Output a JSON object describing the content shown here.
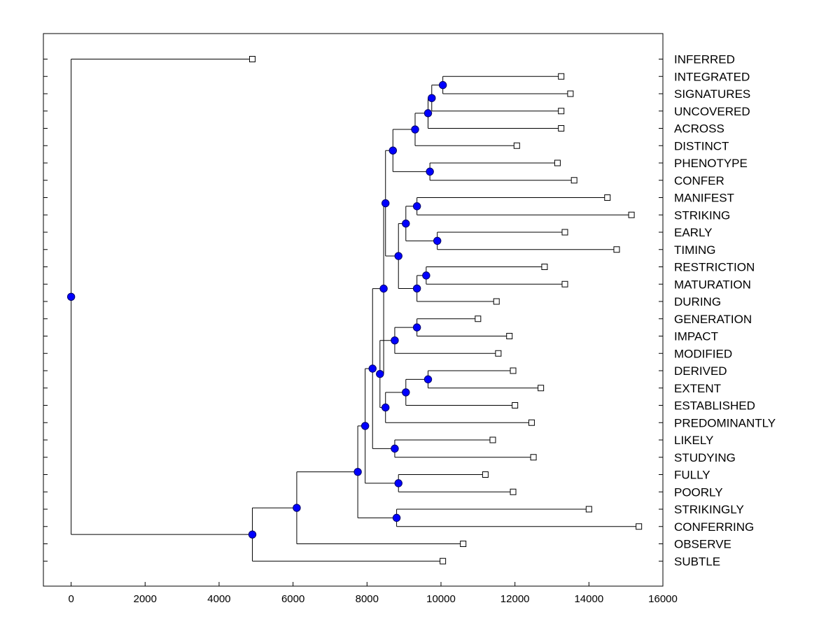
{
  "chart_data": {
    "type": "dendrogram",
    "title": "",
    "xlabel": "",
    "ylabel": "",
    "xlim": [
      -750,
      16000
    ],
    "x_ticks": [
      0,
      2000,
      4000,
      6000,
      8000,
      10000,
      12000,
      14000,
      16000
    ],
    "grid": false,
    "leaf_labels": [
      "INFERRED",
      "INTEGRATED",
      "SIGNATURES",
      "UNCOVERED",
      "ACROSS",
      "DISTINCT",
      "PHENOTYPE",
      "CONFER",
      "MANIFEST",
      "STRIKING",
      "EARLY",
      "TIMING",
      "RESTRICTION",
      "MATURATION",
      "DURING",
      "GENERATION",
      "IMPACT",
      "MODIFIED",
      "DERIVED",
      "EXTENT",
      "ESTABLISHED",
      "PREDOMINANTLY",
      "LIKELY",
      "STUDYING",
      "FULLY",
      "POORLY",
      "STRIKINGLY",
      "CONFERRING",
      "OBSERVE",
      "SUBTLE"
    ],
    "leaf_values": [
      4900,
      13250,
      13500,
      13250,
      13250,
      12050,
      13150,
      13600,
      14500,
      15150,
      13350,
      14750,
      12800,
      13350,
      11500,
      11000,
      11850,
      11550,
      11950,
      12700,
      12000,
      12450,
      11400,
      12500,
      11200,
      11950,
      14000,
      15350,
      10600,
      10050
    ],
    "nodes": [
      {
        "id": "n1",
        "x": 10050,
        "children": [
          "L1",
          "L2"
        ]
      },
      {
        "id": "n2",
        "x": 9750,
        "children": [
          "n1",
          "L3"
        ]
      },
      {
        "id": "n3",
        "x": 9650,
        "children": [
          "n2",
          "L4"
        ]
      },
      {
        "id": "n4",
        "x": 9300,
        "children": [
          "n3",
          "L5"
        ]
      },
      {
        "id": "n5",
        "x": 9700,
        "children": [
          "L6",
          "L7"
        ]
      },
      {
        "id": "n6",
        "x": 8700,
        "children": [
          "n4",
          "n5"
        ]
      },
      {
        "id": "n7",
        "x": 9350,
        "children": [
          "L8",
          "L9"
        ]
      },
      {
        "id": "n8",
        "x": 9900,
        "children": [
          "L10",
          "L11"
        ]
      },
      {
        "id": "n9",
        "x": 9050,
        "children": [
          "n7",
          "n8"
        ]
      },
      {
        "id": "n10",
        "x": 9600,
        "children": [
          "L12",
          "L13"
        ]
      },
      {
        "id": "n11",
        "x": 9350,
        "children": [
          "n10",
          "L14"
        ]
      },
      {
        "id": "n12",
        "x": 8850,
        "children": [
          "n9",
          "n11"
        ]
      },
      {
        "id": "n13",
        "x": 8500,
        "children": [
          "n6",
          "n12"
        ]
      },
      {
        "id": "n14",
        "x": 9350,
        "children": [
          "L15",
          "L16"
        ]
      },
      {
        "id": "n15",
        "x": 8750,
        "children": [
          "n14",
          "L17"
        ]
      },
      {
        "id": "n16",
        "x": 9650,
        "children": [
          "L18",
          "L19"
        ]
      },
      {
        "id": "n17",
        "x": 9050,
        "children": [
          "n16",
          "L20"
        ]
      },
      {
        "id": "n18",
        "x": 8500,
        "children": [
          "n17",
          "L21"
        ]
      },
      {
        "id": "n19",
        "x": 8350,
        "children": [
          "n15",
          "n18"
        ]
      },
      {
        "id": "n20",
        "x": 8450,
        "children": [
          "n13",
          "n19"
        ]
      },
      {
        "id": "n21",
        "x": 8750,
        "children": [
          "L22",
          "L23"
        ]
      },
      {
        "id": "n22",
        "x": 8150,
        "children": [
          "n20",
          "n21"
        ]
      },
      {
        "id": "n23",
        "x": 8850,
        "children": [
          "L24",
          "L25"
        ]
      },
      {
        "id": "n24",
        "x": 7950,
        "children": [
          "n22",
          "n23"
        ]
      },
      {
        "id": "n25",
        "x": 8800,
        "children": [
          "L26",
          "L27"
        ]
      },
      {
        "id": "n26",
        "x": 7750,
        "children": [
          "n24",
          "n25"
        ]
      },
      {
        "id": "n27",
        "x": 6100,
        "children": [
          "n26",
          "L28"
        ]
      },
      {
        "id": "n28",
        "x": 4900,
        "children": [
          "n27",
          "L29"
        ]
      },
      {
        "id": "n29",
        "x": 0,
        "children": [
          "L0",
          "n28"
        ]
      }
    ],
    "colors": {
      "node_fill": "#0000ff",
      "node_stroke": "#000066",
      "line": "#000000",
      "leaf_fill": "#ffffff",
      "axis": "#000000"
    }
  }
}
